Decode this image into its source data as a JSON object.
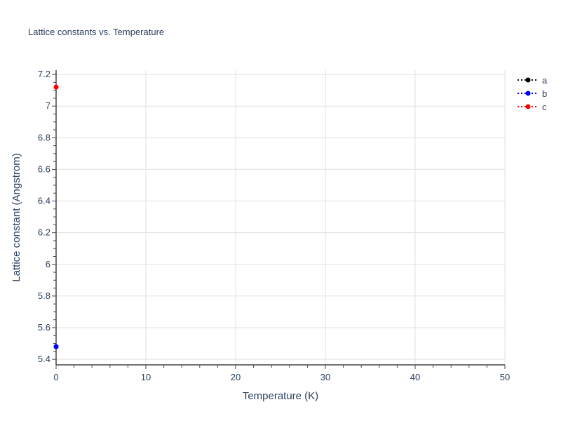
{
  "chart_data": {
    "type": "scatter",
    "title": "Lattice constants vs. Temperature",
    "xlabel": "Temperature (K)",
    "ylabel": "Lattice constant (Angstrom)",
    "xlim": [
      0,
      50
    ],
    "ylim": [
      5.365,
      7.227
    ],
    "xticks": [
      0,
      10,
      20,
      30,
      40,
      50
    ],
    "xtick_labels": [
      "0",
      "10",
      "20",
      "30",
      "40",
      "50"
    ],
    "yticks": [
      5.4,
      5.6,
      5.8,
      6.0,
      6.2,
      6.4,
      6.6,
      6.8,
      7.0,
      7.2
    ],
    "ytick_labels": [
      "5.4",
      "5.6",
      "5.8",
      "6",
      "6.2",
      "6.4",
      "6.6",
      "6.8",
      "7",
      "7.2"
    ],
    "grid": true,
    "legend_position": "top-right",
    "series": [
      {
        "name": "a",
        "color": "#000000",
        "line_style": "dotted",
        "x": [
          0
        ],
        "y": [
          5.48
        ]
      },
      {
        "name": "b",
        "color": "#0000ff",
        "line_style": "dotted",
        "x": [
          0
        ],
        "y": [
          5.48
        ]
      },
      {
        "name": "c",
        "color": "#ff0000",
        "line_style": "dotted",
        "x": [
          0
        ],
        "y": [
          7.12
        ]
      }
    ]
  }
}
